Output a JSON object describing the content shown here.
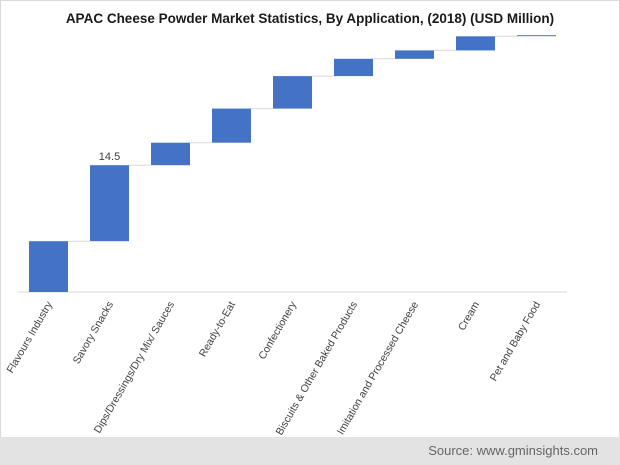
{
  "chart_data": {
    "type": "waterfall",
    "title": "APAC Cheese Powder Market Statistics, By Application, (2018) (USD Million)",
    "categories": [
      "Flavours Industry",
      "Savory Snacks",
      "Dips/Dressings/Dry Mix/ Sauces",
      "Ready-to-Eat",
      "Confectionery",
      "Biscuits & Other Baked Products",
      "Imitation and Processed Cheese",
      "Cream",
      "Pet and Baby Food"
    ],
    "values": [
      9.7,
      14.5,
      4.3,
      6.5,
      6.2,
      3.3,
      1.6,
      2.7,
      0.2
    ],
    "data_labels": [
      {
        "category_index": 1,
        "text": "14.5"
      }
    ],
    "ylim": [
      0,
      50
    ],
    "grid": false,
    "bar_color": "#4472c4",
    "connector_color": "#d9d9d9"
  },
  "source": "Source: www.gminsights.com"
}
